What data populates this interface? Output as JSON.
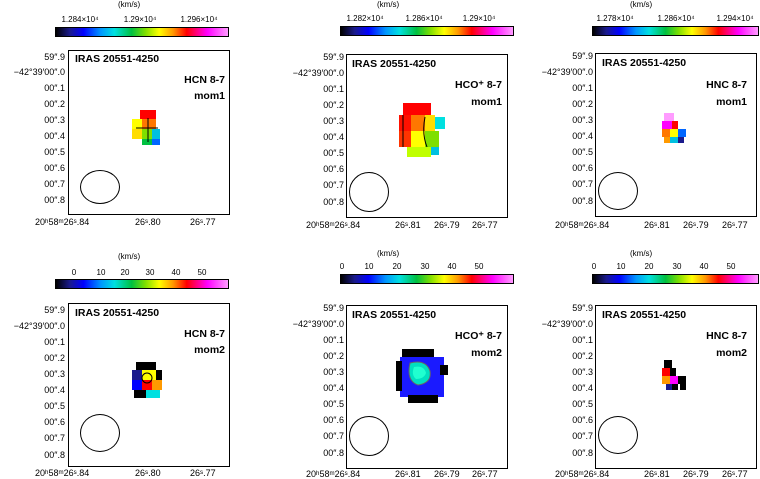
{
  "unit": "(km/s)",
  "source": "IRAS 20551-4250",
  "dec_labels": [
    "59″.9",
    "−42°39′00″.0",
    "00″.1",
    "00″.2",
    "00″.3",
    "00″.4",
    "00″.5",
    "00″.6",
    "00″.7",
    "00″.8"
  ],
  "panels": [
    {
      "line": "HCN 8-7",
      "moment": "mom1",
      "ticks": [
        "1.284×10⁴",
        "1.29×10⁴",
        "1.296×10⁴"
      ],
      "ra": [
        "20ʰ58ᵐ26ˢ.84",
        "26ˢ.80",
        "26ˢ.77"
      ]
    },
    {
      "line": "HCO⁺ 8-7",
      "moment": "mom1",
      "ticks": [
        "1.282×10⁴",
        "1.286×10⁴",
        "1.29×10⁴"
      ],
      "ra": [
        "20ʰ58ᵐ26ˢ.84",
        "26ˢ.81",
        "26ˢ.79",
        "26ˢ.77"
      ]
    },
    {
      "line": "HNC 8-7",
      "moment": "mom1",
      "ticks": [
        "1.278×10⁴",
        "1.286×10⁴",
        "1.294×10⁴"
      ],
      "ra": [
        "20ʰ58ᵐ26ˢ.84",
        "26ˢ.81",
        "26ˢ.79",
        "26ˢ.77"
      ]
    },
    {
      "line": "HCN 8-7",
      "moment": "mom2",
      "ticks": [
        "0",
        "10",
        "20",
        "30",
        "40",
        "50"
      ],
      "ra": [
        "20ʰ58ᵐ26ˢ.84",
        "26ˢ.80",
        "26ˢ.77"
      ]
    },
    {
      "line": "HCO⁺ 8-7",
      "moment": "mom2",
      "ticks": [
        "0",
        "10",
        "20",
        "30",
        "40",
        "50"
      ],
      "ra": [
        "20ʰ58ᵐ26ˢ.84",
        "26ˢ.81",
        "26ˢ.79",
        "26ˢ.77"
      ]
    },
    {
      "line": "HNC 8-7",
      "moment": "mom2",
      "ticks": [
        "0",
        "10",
        "20",
        "30",
        "40",
        "50"
      ],
      "ra": [
        "20ʰ58ᵐ26ˢ.84",
        "26ˢ.81",
        "26ˢ.79",
        "26ˢ.77"
      ]
    }
  ]
}
